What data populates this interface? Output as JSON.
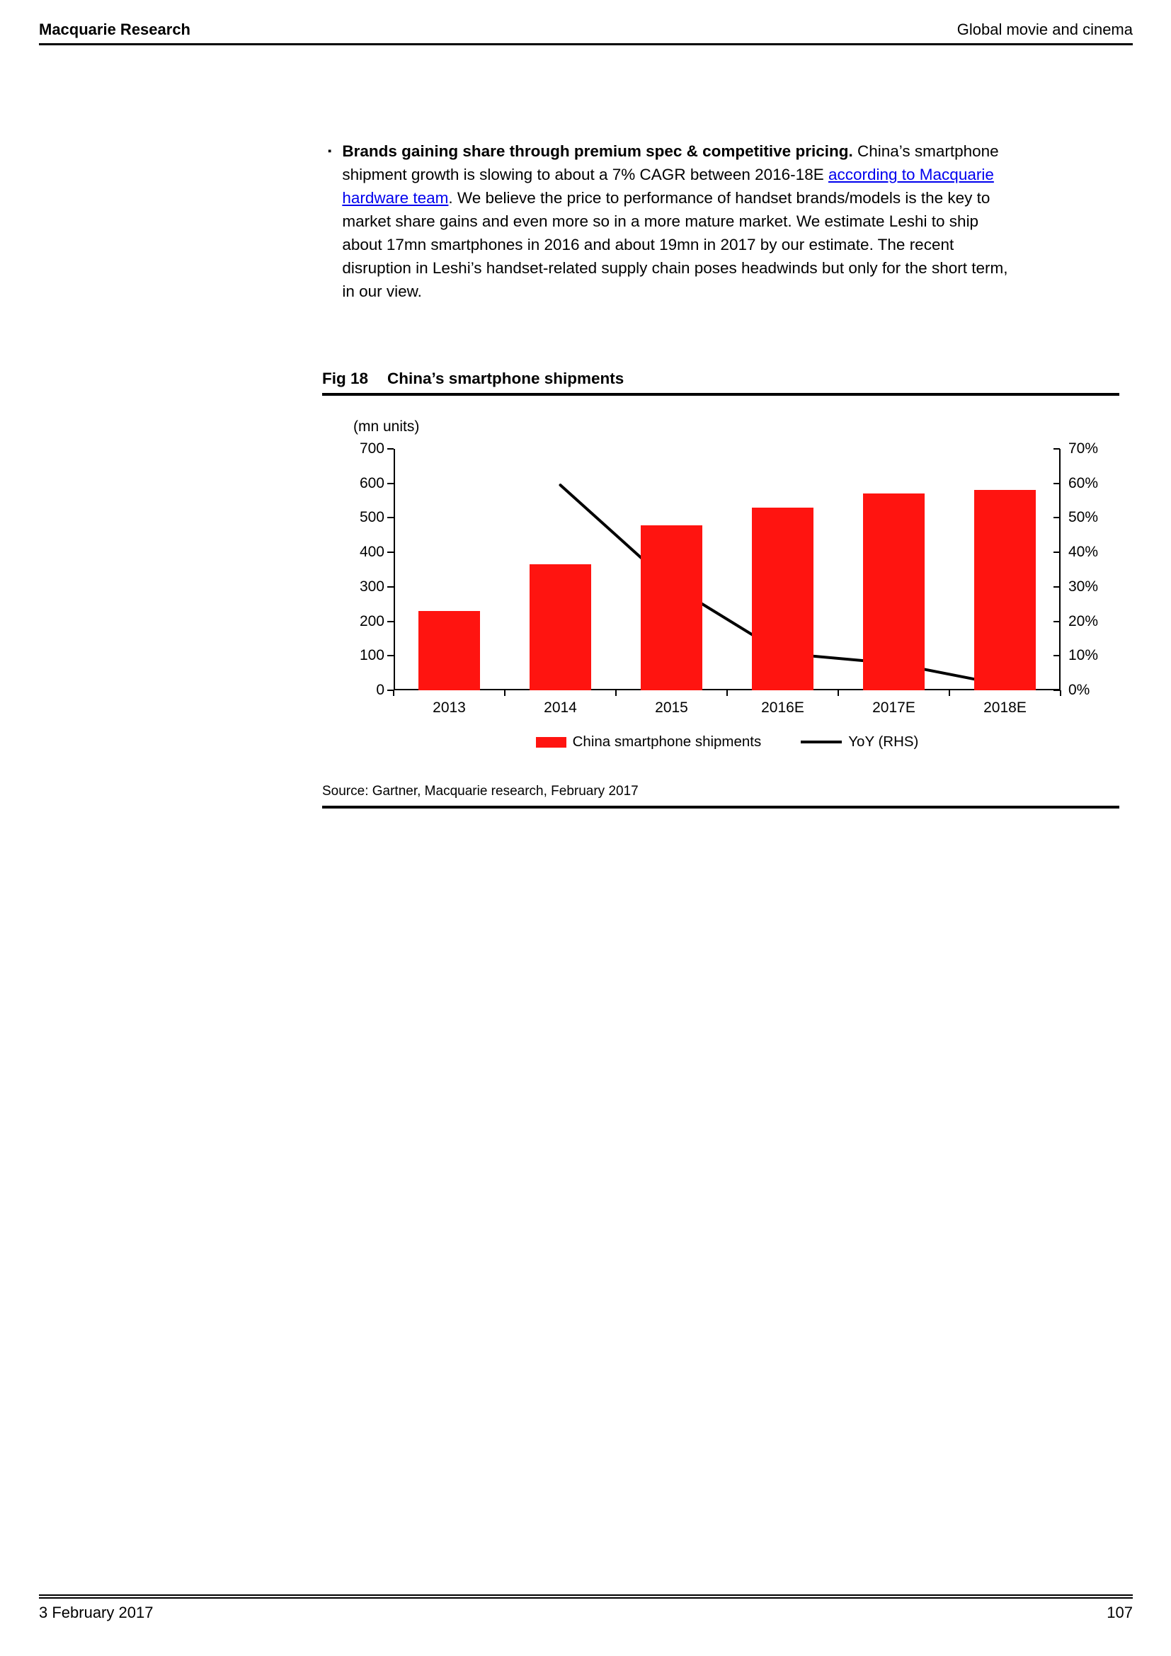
{
  "header": {
    "left": "Macquarie Research",
    "right": "Global movie and cinema"
  },
  "bullet": {
    "marker": "▪",
    "bold_lead": "Brands gaining share through premium spec & competitive pricing.",
    "text_before_link": " China’s smartphone shipment growth is slowing to about a 7% CAGR between 2016-18E ",
    "link_text": "according to Macquarie hardware team",
    "text_after_link": ". We believe the price to performance of handset brands/models is the key to market share gains and even more so in a more mature market. We estimate Leshi to ship about 17mn smartphones in 2016 and about 19mn in 2017 by our estimate. The recent disruption in Leshi’s handset-related supply chain poses headwinds but only for the short term, in our view."
  },
  "figure": {
    "label": "Fig 18",
    "title": "China’s smartphone shipments",
    "source": "Source: Gartner, Macquarie research, February 2017"
  },
  "chart_data": {
    "type": "bar",
    "title": "China’s smartphone shipments",
    "categories": [
      "2013",
      "2014",
      "2015",
      "2016E",
      "2017E",
      "2018E"
    ],
    "series": [
      {
        "name": "China smartphone shipments",
        "type": "bar",
        "axis": "left",
        "color": "#ff1410",
        "values": [
          230,
          365,
          478,
          530,
          570,
          580
        ]
      },
      {
        "name": "YoY (RHS)",
        "type": "line",
        "axis": "right",
        "color": "#000000",
        "values": [
          null,
          59.5,
          30.5,
          10.7,
          7.8,
          1.5
        ]
      }
    ],
    "left_axis": {
      "label": "(mn units)",
      "min": 0,
      "max": 700,
      "step": 100
    },
    "right_axis": {
      "min": 0,
      "max": 70,
      "step": 10,
      "suffix": "%"
    },
    "legend_position": "bottom",
    "grid": false
  },
  "footer": {
    "date": "3 February 2017",
    "page_number": "107"
  },
  "colors": {
    "bar_red": "#ff1410",
    "line_black": "#000000",
    "link_blue": "#0000ee",
    "text": "#000000"
  }
}
